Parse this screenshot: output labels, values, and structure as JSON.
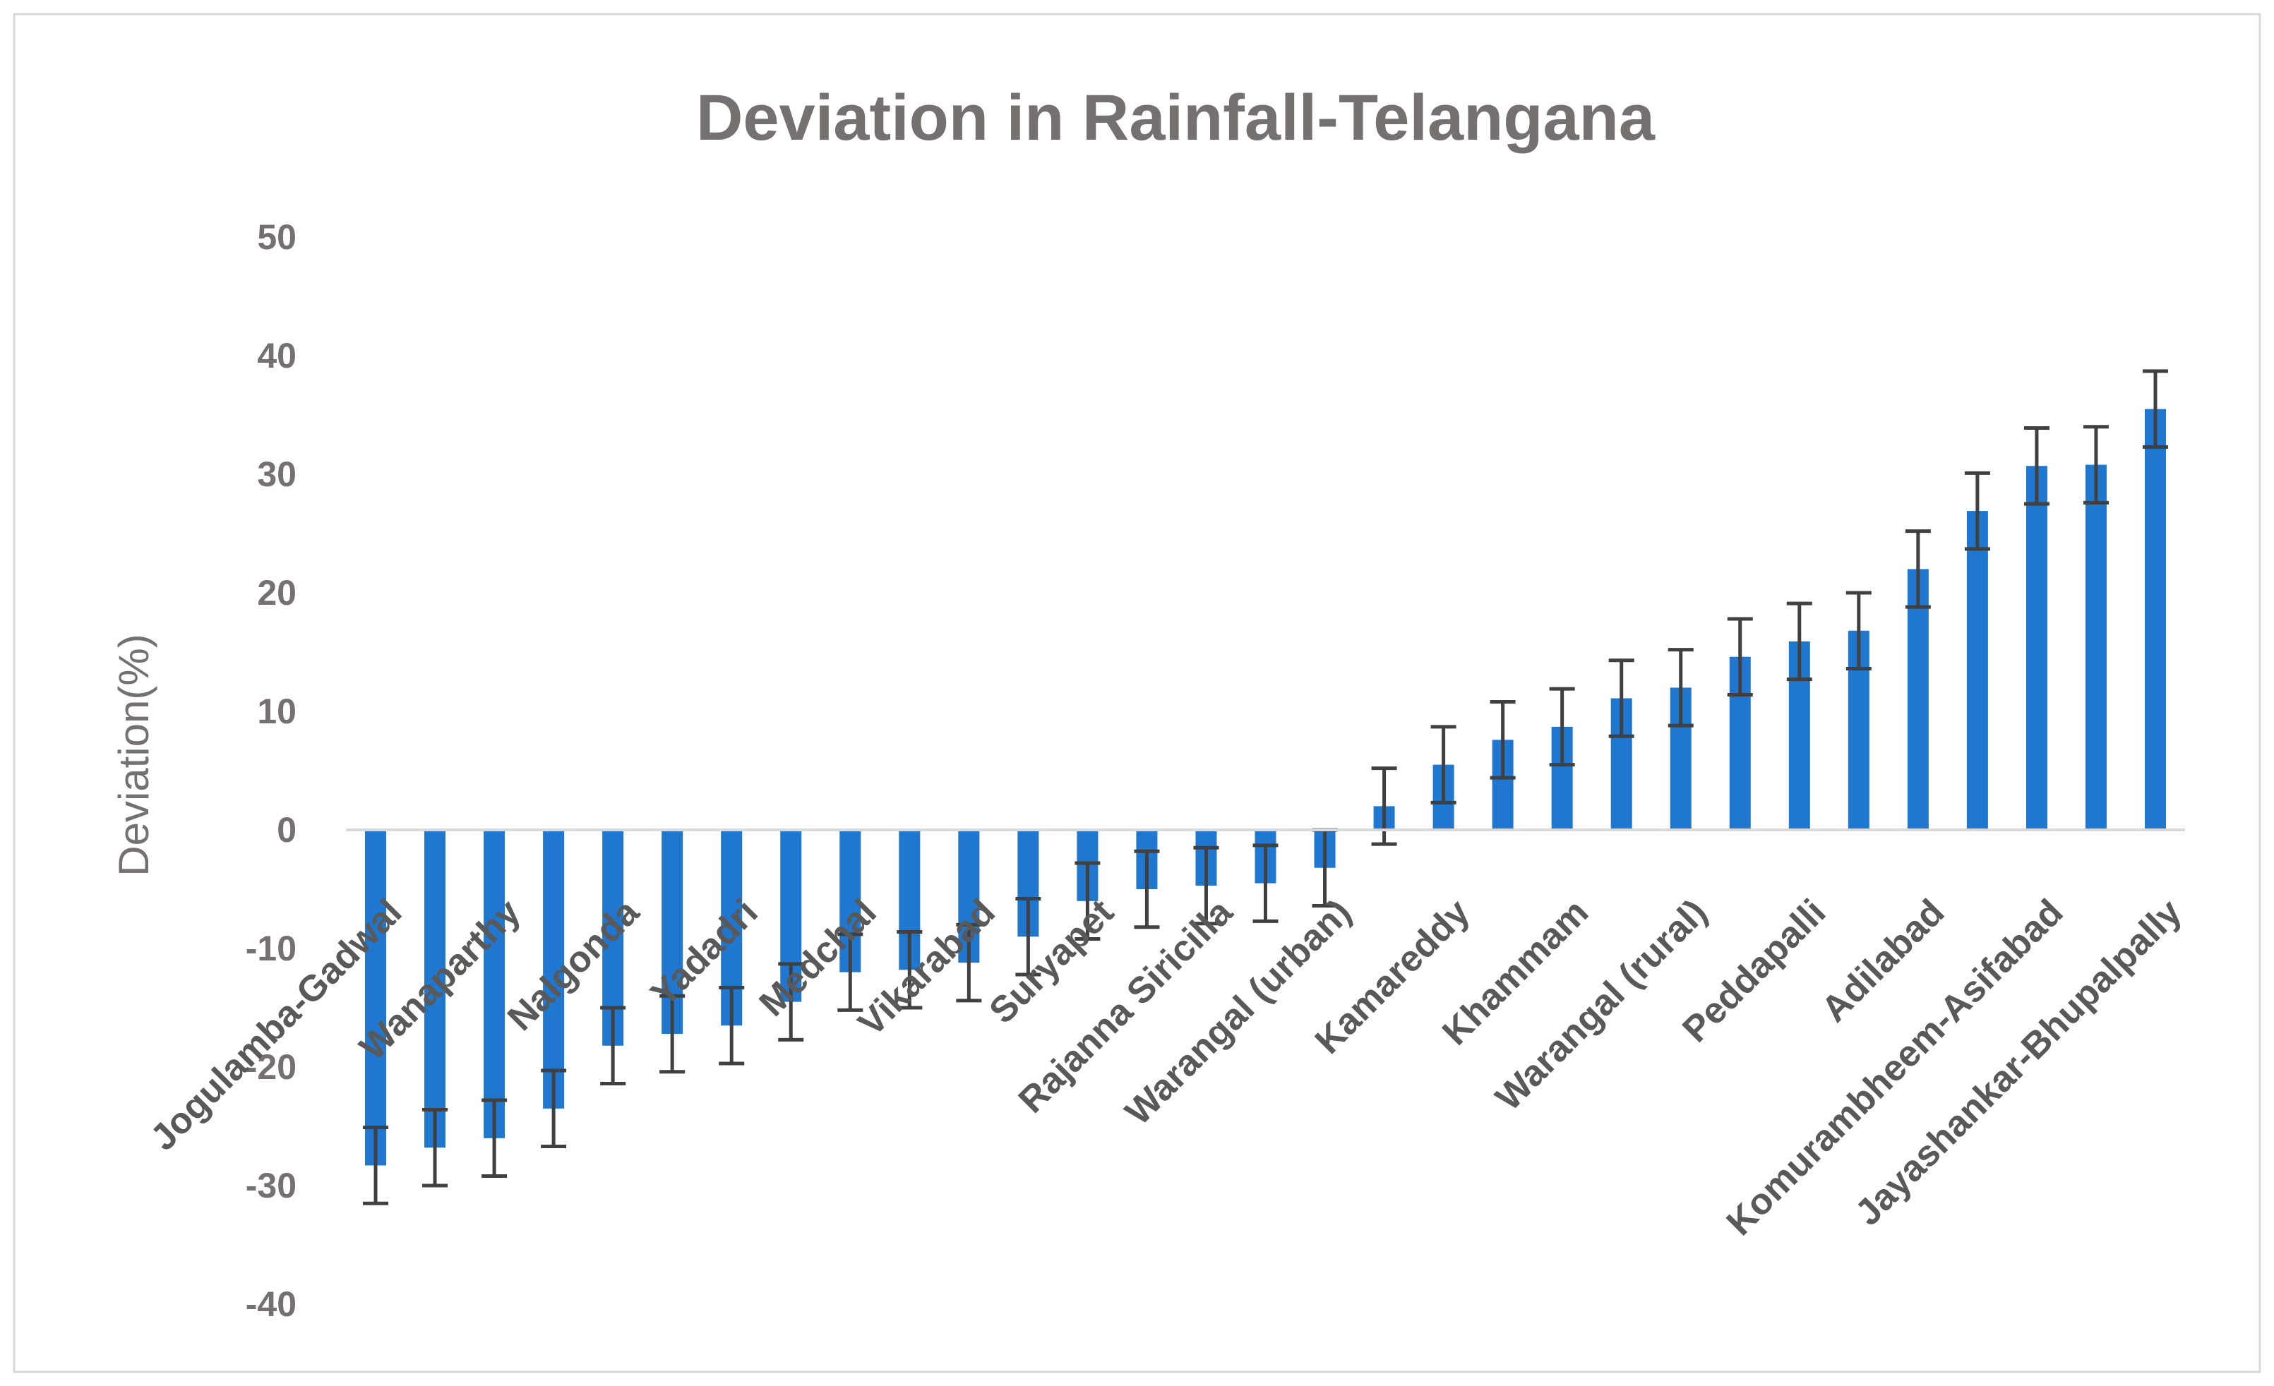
{
  "chart_data": {
    "type": "bar",
    "title": "Deviation in Rainfall-Telangana",
    "xlabel": "",
    "ylabel": "Deviation(%)",
    "ylim": [
      -40,
      50
    ],
    "yticks": [
      50,
      40,
      30,
      20,
      10,
      0,
      -10,
      -20,
      -30,
      -40
    ],
    "grid": false,
    "error_bars": true,
    "error_magnitude": 3.2,
    "colors": {
      "bar": "#1f77d0",
      "error": "#404040",
      "text": "#767171",
      "axis": "#d9d9d9"
    },
    "categories": [
      "Jogulamba-Gadwal",
      "",
      "Wanaparthy",
      "",
      "Nalgonda",
      "",
      "Yadadri",
      "",
      "Medchal",
      "",
      "Vikarabad",
      "",
      "Suryapet",
      "",
      "Rajanna Siricilla",
      "",
      "Warangal (urban)",
      "",
      "Kamareddy",
      "",
      "Khammam",
      "",
      "Warangal (rural)",
      "",
      "Peddapalli",
      "",
      "Adilabad",
      "",
      "Komurambheem-Asifabad",
      "",
      "Jayashankar-Bhupalpally"
    ],
    "values": [
      -28.3,
      -26.8,
      -26.0,
      -23.5,
      -18.2,
      -17.2,
      -16.5,
      -14.5,
      -12.0,
      -11.8,
      -11.2,
      -9.0,
      -6.0,
      -5.0,
      -4.7,
      -4.5,
      -3.2,
      2.0,
      5.5,
      7.6,
      8.7,
      11.1,
      12.0,
      14.6,
      15.9,
      16.8,
      22.0,
      26.9,
      30.7,
      30.8,
      35.5
    ]
  }
}
